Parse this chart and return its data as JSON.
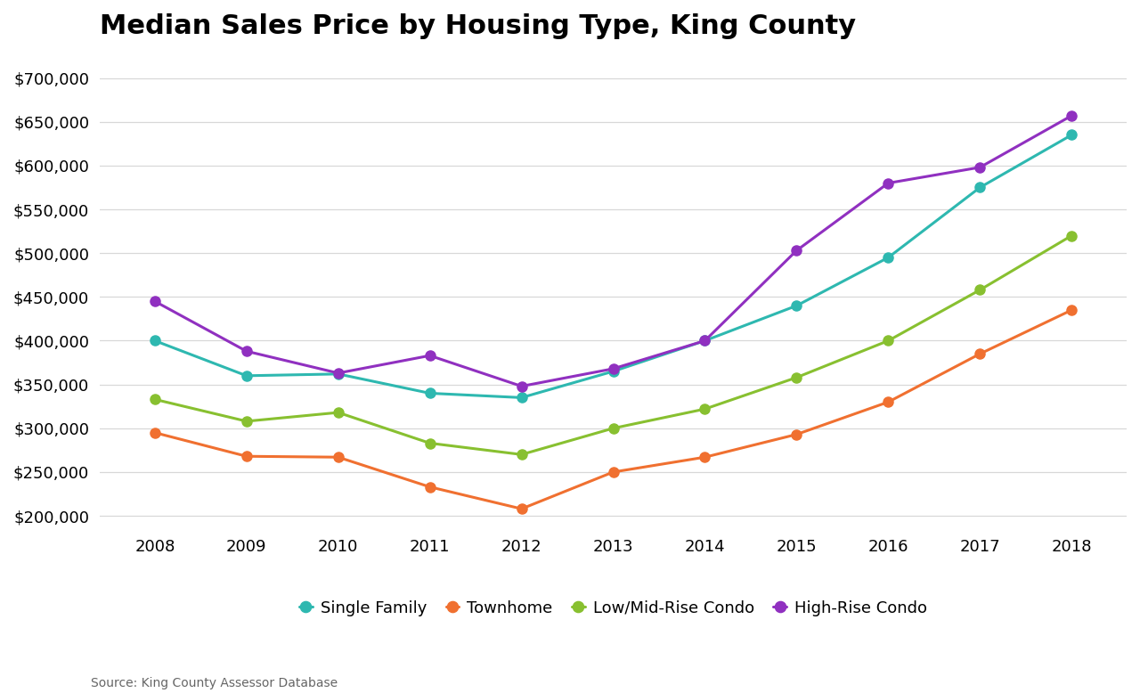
{
  "title": "Median Sales Price by Housing Type, King County",
  "source": "Source: King County Assessor Database",
  "years": [
    2008,
    2009,
    2010,
    2011,
    2012,
    2013,
    2014,
    2015,
    2016,
    2017,
    2018
  ],
  "series": {
    "Single Family": {
      "values": [
        400000,
        360000,
        362000,
        340000,
        335000,
        365000,
        400000,
        440000,
        495000,
        575000,
        635000
      ],
      "color": "#2eb8b0",
      "marker": "o"
    },
    "Townhome": {
      "values": [
        295000,
        268000,
        267000,
        233000,
        208000,
        250000,
        267000,
        293000,
        330000,
        385000,
        435000
      ],
      "color": "#f07030",
      "marker": "o"
    },
    "Low/Mid-Rise Condo": {
      "values": [
        333000,
        308000,
        318000,
        283000,
        270000,
        300000,
        322000,
        358000,
        400000,
        458000,
        520000
      ],
      "color": "#88c030",
      "marker": "o"
    },
    "High-Rise Condo": {
      "values": [
        445000,
        388000,
        363000,
        383000,
        348000,
        368000,
        400000,
        503000,
        580000,
        598000,
        657000
      ],
      "color": "#9030c0",
      "marker": "o"
    }
  },
  "ylim": [
    190000,
    725000
  ],
  "yticks": [
    200000,
    250000,
    300000,
    350000,
    400000,
    450000,
    500000,
    550000,
    600000,
    650000,
    700000
  ],
  "background_color": "#ffffff",
  "plot_bg_color": "#ffffff",
  "grid_color": "#d8d8d8",
  "title_fontsize": 22,
  "axis_fontsize": 13,
  "legend_fontsize": 13,
  "linewidth": 2.2,
  "markersize": 8
}
